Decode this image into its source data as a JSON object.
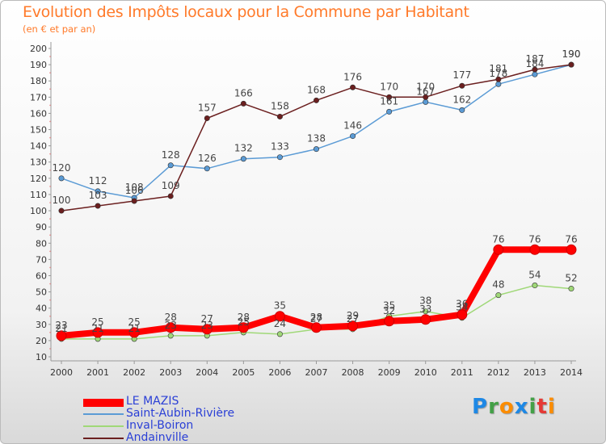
{
  "header": {
    "title": "Evolution des Impôts locaux pour la Commune par Habitant",
    "subtitle": "(en € et par an)"
  },
  "chart_data": {
    "type": "line",
    "title": "Evolution des Impôts locaux pour la Commune par Habitant",
    "subtitle": "(en € et par an)",
    "xlabel": "",
    "ylabel": "",
    "ylim": [
      10,
      200
    ],
    "yticks": [
      10,
      20,
      30,
      40,
      50,
      60,
      70,
      80,
      90,
      100,
      110,
      120,
      130,
      140,
      150,
      160,
      170,
      180,
      190,
      200
    ],
    "grid": false,
    "legend_position": "bottom-left",
    "x": [
      "2000",
      "2001",
      "2002",
      "2003",
      "2004",
      "2005",
      "2006",
      "2007",
      "2008",
      "2009",
      "2010",
      "2011",
      "2012",
      "2013",
      "2014"
    ],
    "series": [
      {
        "name": "LE MAZIS",
        "color": "#ff0000",
        "values": [
          23,
          25,
          25,
          28,
          27,
          28,
          35,
          28,
          29,
          32,
          33,
          36,
          76,
          76,
          76
        ]
      },
      {
        "name": "Saint-Aubin-Rivière",
        "color": "#5b9bd5",
        "values": [
          120,
          112,
          108,
          128,
          126,
          132,
          133,
          138,
          146,
          161,
          167,
          162,
          178,
          184,
          190
        ]
      },
      {
        "name": "Inval-Boiron",
        "color": "#a0d878",
        "values": [
          21,
          21,
          21,
          23,
          23,
          25,
          24,
          27,
          27,
          35,
          38,
          34,
          48,
          54,
          52
        ]
      },
      {
        "name": "Andainville",
        "color": "#6b1f1f",
        "values": [
          100,
          103,
          106,
          109,
          157,
          166,
          158,
          168,
          176,
          170,
          170,
          177,
          181,
          187,
          190
        ]
      }
    ]
  },
  "brand": {
    "letters": [
      "P",
      "r",
      "o",
      "x",
      "i",
      "t",
      "i"
    ],
    "colors": [
      "#1e88e5",
      "#43a047",
      "#fb8c00",
      "#1e88e5",
      "#43a047",
      "#e53935",
      "#fb8c00"
    ]
  }
}
